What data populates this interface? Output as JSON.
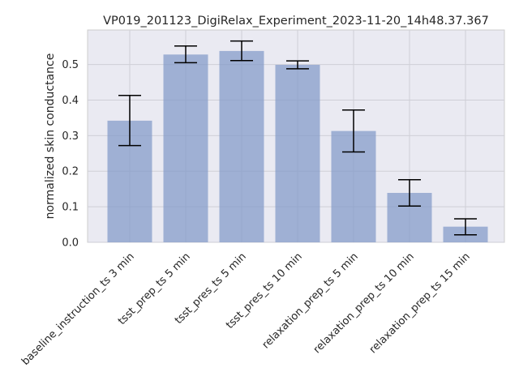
{
  "chart_data": {
    "type": "bar",
    "title": "VP019_201123_DigiRelax_Experiment_2023-11-20_14h48.37.367",
    "xlabel": "",
    "ylabel": "normalized skin conductance",
    "categories": [
      "baseline_instruction_ts 3 min",
      "tsst_prep_ts 5 min",
      "tsst_pres_ts 5 min",
      "tsst_pres_ts 10 min",
      "relaxation_prep_ts 5 min",
      "relaxation_prep_ts 10 min",
      "relaxation_prep_ts 15 min"
    ],
    "values": [
      0.342,
      0.528,
      0.538,
      0.499,
      0.313,
      0.139,
      0.044
    ],
    "error_low": [
      0.272,
      0.505,
      0.511,
      0.488,
      0.254,
      0.102,
      0.021
    ],
    "error_high": [
      0.413,
      0.552,
      0.566,
      0.51,
      0.372,
      0.176,
      0.066
    ],
    "ylim": [
      0,
      0.597
    ],
    "yticks": [
      0.0,
      0.1,
      0.2,
      0.3,
      0.4,
      0.5
    ],
    "ytick_labels": [
      "0.0",
      "0.1",
      "0.2",
      "0.3",
      "0.4",
      "0.5"
    ],
    "grid": true,
    "colors": {
      "bar": "#9fb1d4",
      "plot_background": "#eaeaf2",
      "grid": "#ffffff",
      "error_bar": "#000000",
      "axis_frame": "#cccccc"
    }
  }
}
